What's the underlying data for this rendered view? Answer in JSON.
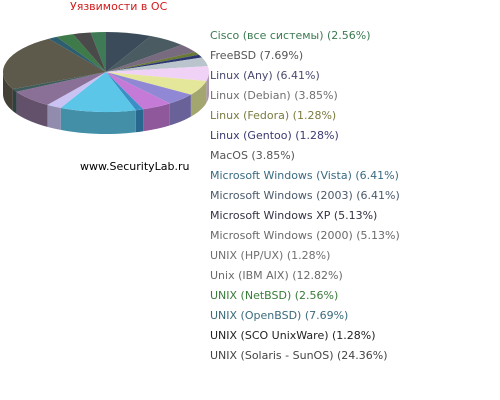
{
  "chart_data": {
    "type": "pie",
    "title": "Уязвимости в ОС",
    "source": "www.SecurityLab.ru",
    "legend_position": "right",
    "three_d": true,
    "slices": [
      {
        "label": "Cisco (все системы) (2.56%)",
        "value": 2.56,
        "color": "#3e7a55"
      },
      {
        "label": "FreeBSD (7.69%)",
        "value": 7.69,
        "color": "#3b4b59"
      },
      {
        "label": "Linux (Any) (6.41%)",
        "value": 6.41,
        "color": "#4b5b62"
      },
      {
        "label": "Linux (Debian) (3.85%)",
        "value": 3.85,
        "color": "#786a7f"
      },
      {
        "label": "Linux (Fedora) (1.28%)",
        "value": 1.28,
        "color": "#6a7a36"
      },
      {
        "label": "Linux (Gentoo) (1.28%)",
        "value": 1.28,
        "color": "#2c3770"
      },
      {
        "label": "MacOS (3.85%)",
        "value": 3.85,
        "color": "#b9c4cc"
      },
      {
        "label": "Microsoft  Windows (Vista) (6.41%)",
        "value": 6.41,
        "color": "#f1d2f7"
      },
      {
        "label": "Microsoft  Windows (2003) (6.41%)",
        "value": 6.41,
        "color": "#e4e79a"
      },
      {
        "label": "Microsoft  Windows XP (5.13%)",
        "value": 5.13,
        "color": "#9088d4"
      },
      {
        "label": "Microsoft Windows (2000) (5.13%)",
        "value": 5.13,
        "color": "#c57ad7"
      },
      {
        "label": "UNIX (HP/UX) (1.28%)",
        "value": 1.28,
        "color": "#3a8fc7"
      },
      {
        "label": "Unix (IBM AIX) (12.82%)",
        "value": 12.82,
        "color": "#5cc6e8"
      },
      {
        "label": "UNIX (NetBSD) (2.56%)",
        "value": 2.56,
        "color": "#c9c2f2"
      },
      {
        "label": "UNIX (OpenBSD) (7.69%)",
        "value": 7.69,
        "color": "#8a7096"
      },
      {
        "label": "UNIX (SCO UnixWare) (1.28%)",
        "value": 1.28,
        "color": "#3d5c5a"
      },
      {
        "label": "UNIX (Solaris - SunOS) (24.36%)",
        "value": 24.36,
        "color": "#5d5a4c"
      }
    ],
    "legend_text_colors": [
      "#3a7a50",
      "#555555",
      "#4a4a70",
      "#707070",
      "#7a7a40",
      "#3a3a70",
      "#555555",
      "#3a6a80",
      "#4a5a6a",
      "#333344",
      "#6a6a6a",
      "#707070",
      "#6a6a6a",
      "#3a7a3a",
      "#3a6a7a",
      "#222222",
      "#444444"
    ],
    "background_slices": [
      {
        "value": 1.5,
        "color": "#2d5e6f"
      },
      {
        "value": 3.0,
        "color": "#3f7a4a"
      },
      {
        "value": 3.0,
        "color": "#4a4a4a"
      }
    ]
  }
}
